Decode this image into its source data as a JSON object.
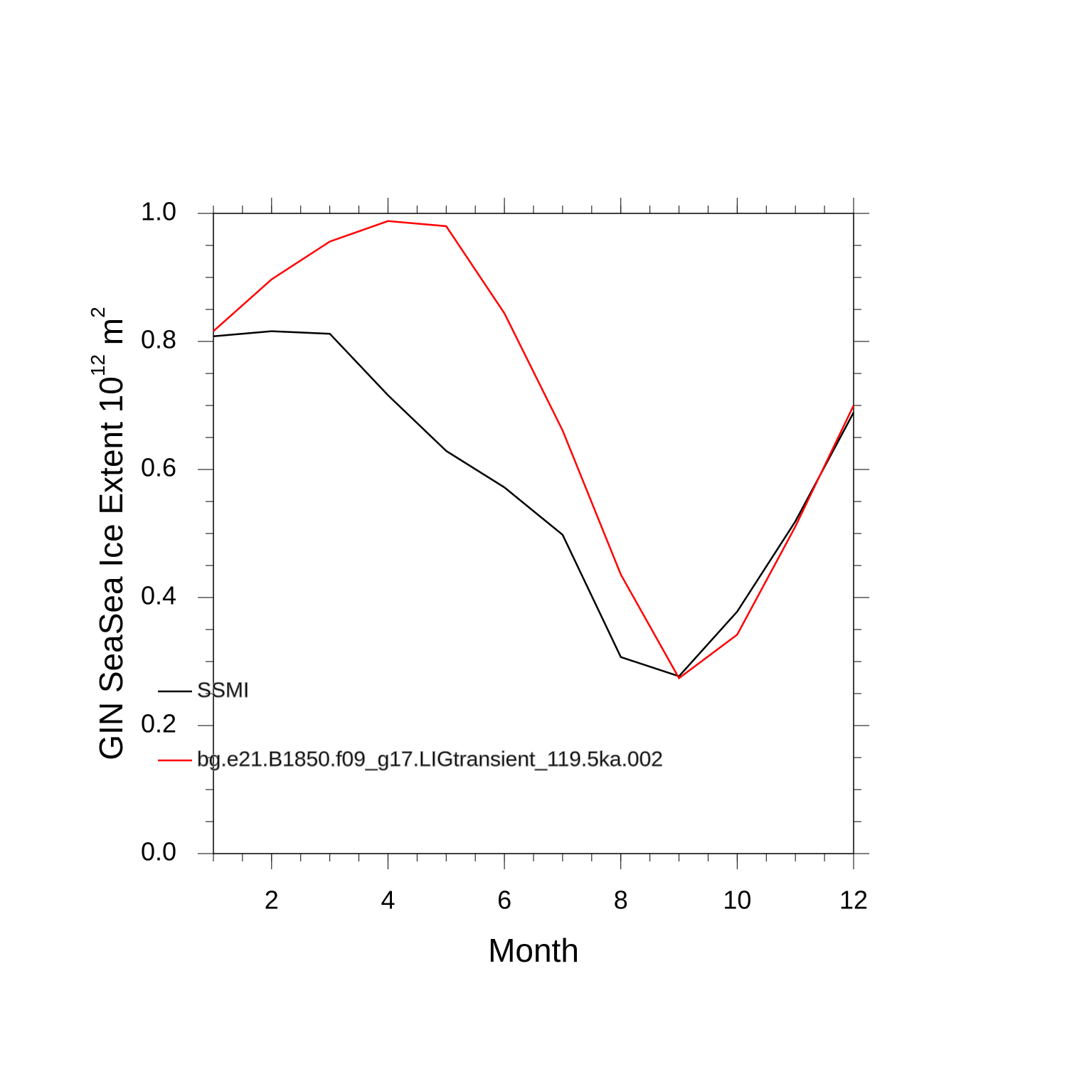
{
  "chart_data": {
    "type": "line",
    "xlabel": "Month",
    "ylabel": [
      "GIN SeaSea Ice Extent 10",
      "12",
      " m",
      "2"
    ],
    "x": [
      1,
      2,
      3,
      4,
      5,
      6,
      7,
      8,
      9,
      10,
      11,
      12
    ],
    "series": [
      {
        "name": "SSMI",
        "color": "#000000",
        "values": [
          0.808,
          0.816,
          0.812,
          0.716,
          0.629,
          0.572,
          0.498,
          0.307,
          0.277,
          0.378,
          0.519,
          0.689
        ]
      },
      {
        "name": "bg.e21.B1850.f09_g17.LIGtransient_119.5ka.002",
        "color": "#ff0000",
        "values": [
          0.816,
          0.897,
          0.956,
          0.988,
          0.98,
          0.844,
          0.661,
          0.436,
          0.274,
          0.342,
          0.511,
          0.7
        ]
      }
    ],
    "xlim": [
      1,
      12
    ],
    "xticks": [
      2,
      4,
      6,
      8,
      10,
      12
    ],
    "ylim": [
      0,
      1
    ],
    "yticks": [
      {
        "value": 0,
        "label": "0.0"
      },
      {
        "value": 0.2,
        "label": "0.2"
      },
      {
        "value": 0.4,
        "label": "0.4"
      },
      {
        "value": 0.6,
        "label": "0.6"
      },
      {
        "value": 0.8,
        "label": "0.8"
      },
      {
        "value": 1,
        "label": "1.0"
      }
    ]
  }
}
